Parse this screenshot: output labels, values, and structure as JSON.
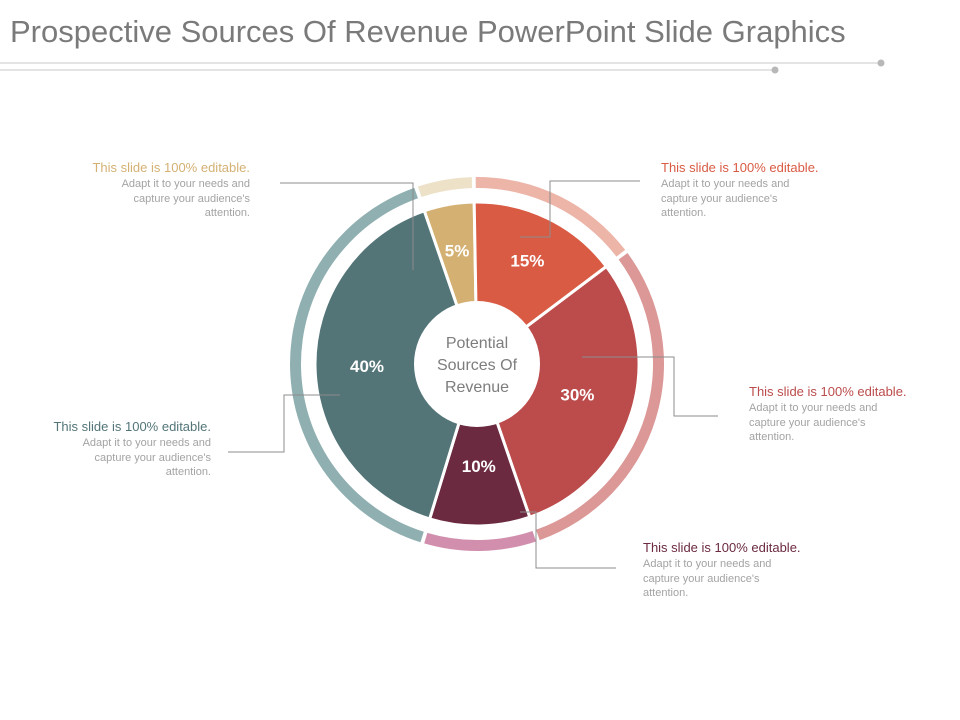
{
  "title": "Prospective Sources Of Revenue PowerPoint Slide Graphics",
  "chart_data": {
    "type": "pie",
    "variant": "donut-with-outer-ring",
    "center_label": [
      "Potential",
      "Sources Of",
      "Revenue"
    ],
    "slices": [
      {
        "label": "5%",
        "value": 5,
        "color": "#d4b173",
        "ring_color": "#ede1c8"
      },
      {
        "label": "15%",
        "value": 15,
        "color": "#d95b44",
        "ring_color": "#edb4a8"
      },
      {
        "label": "30%",
        "value": 30,
        "color": "#bb4c4b",
        "ring_color": "#dc9797"
      },
      {
        "label": "10%",
        "value": 10,
        "color": "#6b2a40",
        "ring_color": "#d18fad"
      },
      {
        "label": "40%",
        "value": 40,
        "color": "#537578",
        "ring_color": "#8fafb1"
      }
    ]
  },
  "callouts": [
    {
      "heading": "This slide is 100% editable.",
      "body": [
        "Adapt it to your needs and",
        "capture your audience's",
        "attention."
      ],
      "color": "#d4b173"
    },
    {
      "heading": "This slide is 100% editable.",
      "body": [
        "Adapt it to your needs and",
        "capture your audience's",
        "attention."
      ],
      "color": "#d95b44"
    },
    {
      "heading": "This slide is 100% editable.",
      "body": [
        "Adapt it to your needs and",
        "capture your audience's",
        "attention."
      ],
      "color": "#bb4c4b"
    },
    {
      "heading": "This slide is 100% editable.",
      "body": [
        "Adapt it to your needs and",
        "capture your audience's",
        "attention."
      ],
      "color": "#6b2a40"
    },
    {
      "heading": "This slide is 100% editable.",
      "body": [
        "Adapt it to your needs and",
        "capture your audience's",
        "attention."
      ],
      "color": "#537578"
    }
  ]
}
